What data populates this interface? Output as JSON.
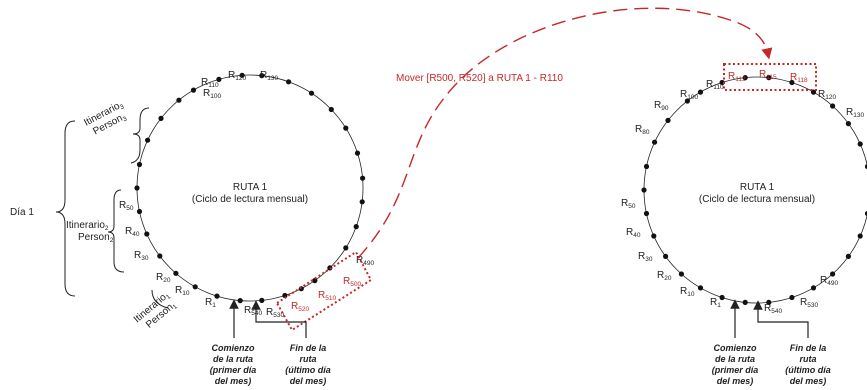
{
  "move_label": "Mover [R500, R520] a RUTA 1 - R110",
  "dia_label": "Día 1",
  "left": {
    "route_title": "RUTA 1",
    "route_subtitle": "(Ciclo de lectura mensual)",
    "labels": {
      "r1": [
        "R",
        "1"
      ],
      "r10": [
        "R",
        "10"
      ],
      "r20": [
        "R",
        "20"
      ],
      "r30": [
        "R",
        "30"
      ],
      "r40": [
        "R",
        "40"
      ],
      "r50": [
        "R",
        "50"
      ],
      "r100": [
        "R",
        "100"
      ],
      "r110": [
        "R",
        "110"
      ],
      "r120": [
        "R",
        "120"
      ],
      "r130": [
        "R",
        "130"
      ],
      "r490": [
        "R",
        "490"
      ],
      "r500": [
        "R",
        "500"
      ],
      "r510": [
        "R",
        "510"
      ],
      "r520": [
        "R",
        "520"
      ],
      "r530": [
        "R",
        "530"
      ],
      "r540": [
        "R",
        "540"
      ]
    },
    "itinerary3": [
      "Itinerario",
      "3",
      "Person",
      "3"
    ],
    "itinerary2": [
      "Itinerario",
      "2",
      "Person",
      "2"
    ],
    "itinerary1": [
      "Itinerario",
      "1",
      "Person",
      "1"
    ]
  },
  "right": {
    "route_title": "RUTA 1",
    "route_subtitle": "(Ciclo de lectura mensual)",
    "labels": {
      "r1": [
        "R",
        "1"
      ],
      "r10": [
        "R",
        "10"
      ],
      "r20": [
        "R",
        "20"
      ],
      "r30": [
        "R",
        "30"
      ],
      "r40": [
        "R",
        "40"
      ],
      "r50": [
        "R",
        "50"
      ],
      "r80": [
        "R",
        "80"
      ],
      "r90": [
        "R",
        "90"
      ],
      "r100": [
        "R",
        "100"
      ],
      "r110": [
        "R",
        "110"
      ],
      "r112": [
        "R",
        "112"
      ],
      "r115": [
        "R",
        "115"
      ],
      "r118": [
        "R",
        "118"
      ],
      "r120": [
        "R",
        "120"
      ],
      "r130": [
        "R",
        "130"
      ],
      "r490": [
        "R",
        "490"
      ],
      "r530": [
        "R",
        "530"
      ],
      "r540": [
        "R",
        "540"
      ]
    }
  },
  "captions": {
    "start": [
      "Comienzo",
      "de la ruta",
      "(primer día",
      "del mes)"
    ],
    "end": [
      "Fin de la",
      "ruta",
      "(último día",
      "del mes)"
    ]
  },
  "colors": {
    "accent": "#c62828",
    "line": "#222222"
  }
}
